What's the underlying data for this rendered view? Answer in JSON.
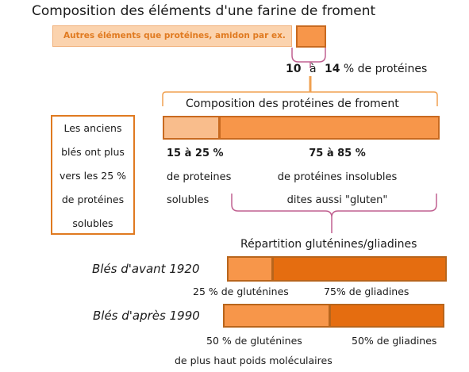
{
  "title": "Composition des éléments d'une farine de froment",
  "flour": {
    "other_label": "Autres éléments que protéines, amidon par ex.",
    "protein_low": "10",
    "protein_and": "à",
    "protein_high": "14",
    "protein_suffix": "% de protéines",
    "protein_fraction_range": [
      0.1,
      0.14
    ]
  },
  "proteins": {
    "title": "Composition des protéines de froment",
    "soluble": {
      "pct": "15 à 25 %",
      "line1": "de proteines",
      "line2": "solubles",
      "fraction_range": [
        0.15,
        0.25
      ]
    },
    "insoluble": {
      "pct": "75 à 85 %",
      "line1": "de protéines insolubles",
      "line2": "dites aussi \"gluten\"",
      "fraction_range": [
        0.75,
        0.85
      ]
    }
  },
  "note": {
    "lines": [
      "Les anciens",
      "blés ont plus",
      "vers les 25 %",
      "de protéines",
      "solubles"
    ]
  },
  "gluten": {
    "title": "Répartition gluténines/gliadines",
    "before": {
      "label": "Blés d'avant 1920",
      "glutenin_text": "25 % de gluténines",
      "gliadin_text": "75% de gliadines",
      "glutenin_fraction": 0.25
    },
    "after": {
      "label": "Blés d'après 1990",
      "glutenin_text": "50 % de gluténines",
      "gliadin_text": "50% de gliadines",
      "glutenin_fraction": 0.5,
      "footnote": "de plus haut poids moléculaires"
    }
  },
  "colors": {
    "light": "#f9bd8c",
    "medium": "#f7964a",
    "dark": "#e56d10",
    "border": "#b8651c",
    "brace": "#c06090",
    "brace_orange": "#f0a050"
  }
}
